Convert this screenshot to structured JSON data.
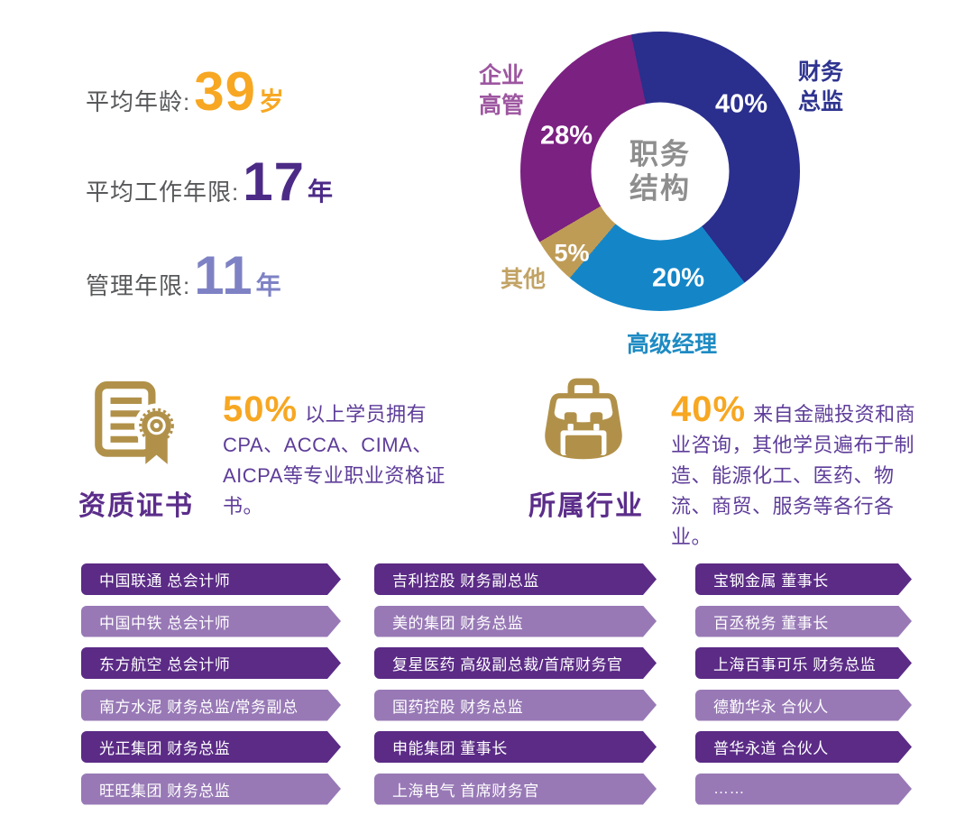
{
  "colors": {
    "page_bg": "#ffffff",
    "orange": "#f7a722",
    "deep_violet": "#4c2b87",
    "periwinkle": "#7e82c4",
    "stat_label_gray": "#58595b",
    "heading_purple": "#5b2d8a",
    "paragraph_purple": "#5e3d99",
    "icon_gold": "#b1914a",
    "bar_dark": "#5b2b86",
    "bar_light": "#9879b6",
    "donut_center_gray": "#8e8e8e"
  },
  "stats": {
    "rows": [
      {
        "label": "平均年龄:",
        "value": "39",
        "unit": "岁",
        "color": "#f7a722"
      },
      {
        "label": "平均工作年限:",
        "value": "17",
        "unit": "年",
        "color": "#4c2b87"
      },
      {
        "label": "管理年限:",
        "value": "11",
        "unit": "年",
        "color": "#7e82c4"
      }
    ]
  },
  "chart_data": {
    "type": "pie",
    "title": "职务\n结构",
    "donut_hole_ratio": 0.494,
    "start_angle_deg": -12,
    "legend_position": "around",
    "segments": [
      {
        "label": "财务\n总监",
        "value": 40,
        "display": "40%",
        "color": "#2a2e8d",
        "label_color": "#2f3490"
      },
      {
        "label": "高级经理",
        "value": 20,
        "display": "20%",
        "color": "#1486c8",
        "label_color": "#1e8bc3"
      },
      {
        "label": "其他",
        "value": 5,
        "display": "5%",
        "color": "#bf9c56",
        "label_color": "#c2a365"
      },
      {
        "label": "企业\n高管",
        "value": 28,
        "display": "28%",
        "color": "#7b2182",
        "label_color": "#9d56a0"
      }
    ]
  },
  "features": [
    {
      "icon": "certificate-icon",
      "title": "资质证书",
      "stat": "50%",
      "text": "以上学员拥有CPA、ACCA、CIMA、AICPA等专业职业资格证书。"
    },
    {
      "icon": "briefcase-icon",
      "title": "所属行业",
      "stat": "40%",
      "text": "来自金融投资和商业咨询，其他学员遍布于制造、能源化工、医药、物流、商贸、服务等各行各业。"
    }
  ],
  "alumni": {
    "columns": [
      {
        "items": [
          "中国联通 总会计师",
          "中国中铁 总会计师",
          "东方航空 总会计师",
          "南方水泥 财务总监/常务副总",
          "光正集团 财务总监",
          "旺旺集团 财务总监"
        ]
      },
      {
        "items": [
          "吉利控股 财务副总监",
          "美的集团 财务总监",
          "复星医药 高级副总裁/首席财务官",
          "国药控股 财务总监",
          "申能集团 董事长",
          "上海电气 首席财务官"
        ]
      },
      {
        "items": [
          "宝钢金属 董事长",
          "百丞税务 董事长",
          "上海百事可乐 财务总监",
          "德勤华永 合伙人",
          "普华永道 合伙人",
          "……"
        ]
      }
    ]
  }
}
